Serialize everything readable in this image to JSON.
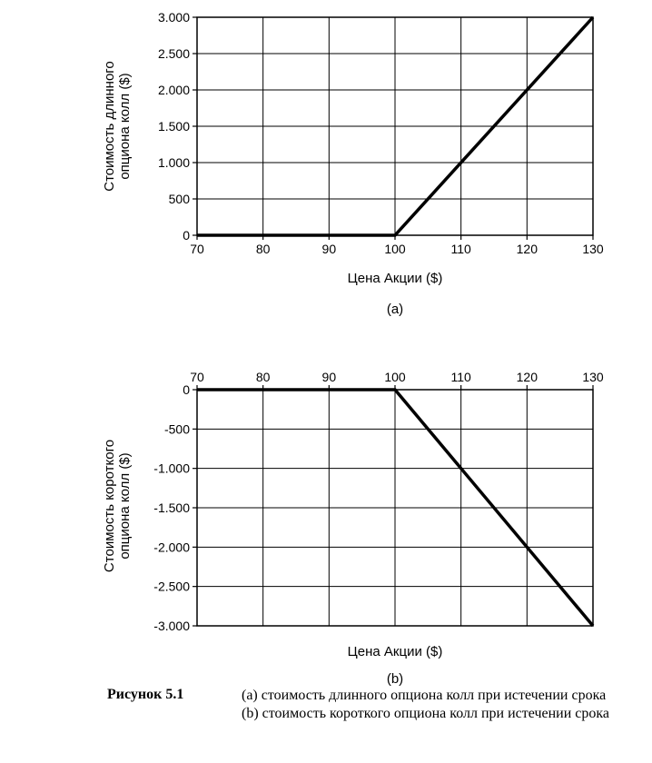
{
  "chart_data": [
    {
      "type": "line",
      "panel_label": "(a)",
      "xlabel": "Цена Акции ($)",
      "ylabel": [
        "Стоимость длинного",
        "опциона колл ($)"
      ],
      "xlim": [
        70,
        130
      ],
      "ylim": [
        0,
        3000
      ],
      "x_ticks": [
        70,
        80,
        90,
        100,
        110,
        120,
        130
      ],
      "x_tick_labels": [
        "70",
        "80",
        "90",
        "100",
        "110",
        "120",
        "130"
      ],
      "y_ticks": [
        0,
        500,
        1000,
        1500,
        2000,
        2500,
        3000
      ],
      "y_tick_labels": [
        "0",
        "500",
        "1.000",
        "1.500",
        "2.000",
        "2.500",
        "3.000"
      ],
      "x_axis_position": "bottom",
      "grid": true,
      "series": [
        {
          "x": [
            70,
            100,
            130
          ],
          "y": [
            0,
            0,
            3000
          ]
        }
      ]
    },
    {
      "type": "line",
      "panel_label": "(b)",
      "xlabel": "Цена Акции ($)",
      "ylabel": [
        "Стоимость короткого",
        "опциона колл ($)"
      ],
      "xlim": [
        70,
        130
      ],
      "ylim": [
        -3000,
        0
      ],
      "x_ticks": [
        70,
        80,
        90,
        100,
        110,
        120,
        130
      ],
      "x_tick_labels": [
        "70",
        "80",
        "90",
        "100",
        "110",
        "120",
        "130"
      ],
      "y_ticks": [
        -3000,
        -2500,
        -2000,
        -1500,
        -1000,
        -500,
        0
      ],
      "y_tick_labels": [
        "-3.000",
        "-2.500",
        "-2.000",
        "-1.500",
        "-1.000",
        "-500",
        "0"
      ],
      "x_axis_position": "top",
      "grid": true,
      "series": [
        {
          "x": [
            70,
            100,
            130
          ],
          "y": [
            0,
            0,
            -3000
          ]
        }
      ]
    }
  ],
  "caption": {
    "label": "Рисунок 5.1",
    "lines": [
      "(a) стоимость длинного опциона колл при истечении срока",
      "(b) стоимость короткого опциона колл при истечении срока"
    ]
  }
}
